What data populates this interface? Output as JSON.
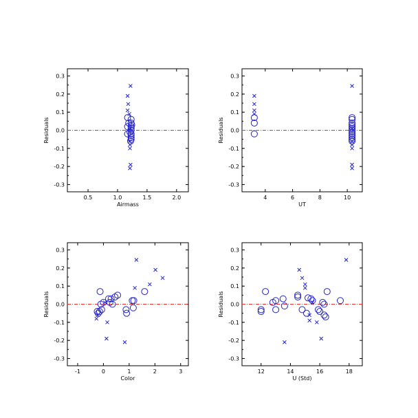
{
  "colors": {
    "points": "#2222cc",
    "zero_line": "#e0342c",
    "axes": "#000000"
  },
  "chart_data": [
    {
      "type": "scatter",
      "xlabel": "Airmass",
      "ylabel": "Residuals",
      "xlim": [
        0.15,
        2.2
      ],
      "ylim": [
        -0.34,
        0.34
      ],
      "xticks": [
        "0.5",
        "1.0",
        "1.5",
        "2.0"
      ],
      "xtick_values": [
        0.5,
        1.0,
        1.5,
        2.0
      ],
      "yticks": [
        "-0.3",
        "-0.2",
        "-0.1",
        "0.0",
        "0.1",
        "0.2",
        "0.3"
      ],
      "ytick_values": [
        -0.3,
        -0.2,
        -0.1,
        0.0,
        0.1,
        0.2,
        0.3
      ],
      "reference_line_y": 0.0,
      "series": [
        {
          "marker": "cross",
          "points": [
            [
              1.22,
              0.245
            ],
            [
              1.17,
              0.19
            ],
            [
              1.18,
              0.145
            ],
            [
              1.17,
              0.11
            ],
            [
              1.2,
              0.09
            ],
            [
              1.22,
              0.01
            ],
            [
              1.21,
              -0.06
            ],
            [
              1.21,
              -0.08
            ],
            [
              1.21,
              -0.1
            ],
            [
              1.22,
              -0.19
            ],
            [
              1.21,
              -0.21
            ]
          ]
        },
        {
          "marker": "circle",
          "points": [
            [
              1.17,
              0.07
            ],
            [
              1.23,
              0.06
            ],
            [
              1.19,
              0.04
            ],
            [
              1.23,
              0.04
            ],
            [
              1.24,
              0.03
            ],
            [
              1.17,
              0.02
            ],
            [
              1.23,
              0.02
            ],
            [
              1.23,
              0.01
            ],
            [
              1.23,
              0.0
            ],
            [
              1.21,
              -0.01
            ],
            [
              1.17,
              -0.02
            ],
            [
              1.23,
              -0.02
            ],
            [
              1.23,
              -0.03
            ],
            [
              1.23,
              -0.04
            ],
            [
              1.23,
              -0.05
            ],
            [
              1.22,
              -0.06
            ]
          ]
        }
      ]
    },
    {
      "type": "scatter",
      "xlabel": "UT",
      "ylabel": "Residuals",
      "xlim": [
        2.3,
        11.1
      ],
      "ylim": [
        -0.34,
        0.34
      ],
      "xticks": [
        "4",
        "6",
        "8",
        "10"
      ],
      "xtick_values": [
        4,
        6,
        8,
        10
      ],
      "yticks": [
        "-0.3",
        "-0.2",
        "-0.1",
        "0.0",
        "0.1",
        "0.2",
        "0.3"
      ],
      "ytick_values": [
        -0.3,
        -0.2,
        -0.1,
        0.0,
        0.1,
        0.2,
        0.3
      ],
      "reference_line_y": 0.0,
      "series": [
        {
          "marker": "cross",
          "points": [
            [
              3.2,
              0.19
            ],
            [
              3.2,
              0.145
            ],
            [
              3.2,
              0.11
            ],
            [
              3.2,
              0.09
            ],
            [
              10.35,
              0.245
            ],
            [
              10.35,
              0.01
            ],
            [
              10.35,
              -0.06
            ],
            [
              10.35,
              -0.08
            ],
            [
              10.35,
              -0.1
            ],
            [
              10.35,
              -0.19
            ],
            [
              10.35,
              -0.21
            ]
          ]
        },
        {
          "marker": "circle",
          "points": [
            [
              3.2,
              0.07
            ],
            [
              3.2,
              0.04
            ],
            [
              3.2,
              -0.02
            ],
            [
              10.35,
              0.07
            ],
            [
              10.35,
              0.06
            ],
            [
              10.35,
              0.04
            ],
            [
              10.35,
              0.03
            ],
            [
              10.35,
              0.02
            ],
            [
              10.35,
              0.01
            ],
            [
              10.35,
              0.0
            ],
            [
              10.35,
              -0.01
            ],
            [
              10.35,
              -0.02
            ],
            [
              10.35,
              -0.03
            ],
            [
              10.35,
              -0.04
            ],
            [
              10.35,
              -0.05
            ],
            [
              10.35,
              -0.06
            ]
          ]
        }
      ]
    },
    {
      "type": "scatter",
      "xlabel": "Color",
      "ylabel": "Residuals",
      "xlim": [
        -1.4,
        3.3
      ],
      "ylim": [
        -0.34,
        0.34
      ],
      "xticks": [
        "-1",
        "0",
        "1",
        "2",
        "3"
      ],
      "xtick_values": [
        -1,
        0,
        1,
        2,
        3
      ],
      "yticks": [
        "-0.3",
        "-0.2",
        "-0.1",
        "0.0",
        "0.1",
        "0.2",
        "0.3"
      ],
      "ytick_values": [
        -0.3,
        -0.2,
        -0.1,
        0.0,
        0.1,
        0.2,
        0.3
      ],
      "reference_line_y": 0.0,
      "series": [
        {
          "marker": "cross",
          "points": [
            [
              1.28,
              0.245
            ],
            [
              2.02,
              0.19
            ],
            [
              2.3,
              0.145
            ],
            [
              1.8,
              0.11
            ],
            [
              1.22,
              0.09
            ],
            [
              0.06,
              0.01
            ],
            [
              -0.22,
              -0.06
            ],
            [
              -0.27,
              -0.08
            ],
            [
              0.15,
              -0.1
            ],
            [
              0.12,
              -0.19
            ],
            [
              0.83,
              -0.21
            ]
          ]
        },
        {
          "marker": "circle",
          "points": [
            [
              -0.13,
              0.07
            ],
            [
              1.6,
              0.07
            ],
            [
              0.55,
              0.05
            ],
            [
              0.45,
              0.04
            ],
            [
              0.2,
              0.03
            ],
            [
              0.3,
              0.03
            ],
            [
              1.12,
              0.02
            ],
            [
              1.18,
              0.02
            ],
            [
              0.0,
              0.01
            ],
            [
              0.25,
              0.01
            ],
            [
              -0.1,
              0.0
            ],
            [
              0.35,
              0.0
            ],
            [
              1.16,
              -0.02
            ],
            [
              0.88,
              -0.03
            ],
            [
              -0.07,
              -0.03
            ],
            [
              -0.15,
              -0.04
            ],
            [
              0.9,
              -0.05
            ],
            [
              -0.24,
              -0.04
            ],
            [
              -0.2,
              -0.05
            ]
          ]
        }
      ]
    },
    {
      "type": "scatter",
      "xlabel": "U (Std)",
      "ylabel": "Residuals",
      "xlim": [
        10.7,
        18.9
      ],
      "ylim": [
        -0.34,
        0.34
      ],
      "xticks": [
        "12",
        "14",
        "16",
        "18"
      ],
      "xtick_values": [
        12,
        14,
        16,
        18
      ],
      "yticks": [
        "-0.3",
        "-0.2",
        "-0.1",
        "0.0",
        "0.1",
        "0.2",
        "0.3"
      ],
      "ytick_values": [
        -0.3,
        -0.2,
        -0.1,
        0.0,
        0.1,
        0.2,
        0.3
      ],
      "reference_line_y": 0.0,
      "series": [
        {
          "marker": "cross",
          "points": [
            [
              17.8,
              0.245
            ],
            [
              14.6,
              0.19
            ],
            [
              14.8,
              0.145
            ],
            [
              15.0,
              0.11
            ],
            [
              15.0,
              0.09
            ],
            [
              15.5,
              0.01
            ],
            [
              15.3,
              -0.06
            ],
            [
              15.3,
              -0.09
            ],
            [
              15.8,
              -0.1
            ],
            [
              16.1,
              -0.19
            ],
            [
              13.6,
              -0.21
            ]
          ]
        },
        {
          "marker": "circle",
          "points": [
            [
              12.3,
              0.07
            ],
            [
              16.5,
              0.07
            ],
            [
              14.5,
              0.05
            ],
            [
              14.5,
              0.04
            ],
            [
              15.2,
              0.035
            ],
            [
              13.0,
              0.02
            ],
            [
              13.5,
              0.03
            ],
            [
              15.5,
              0.02
            ],
            [
              17.4,
              0.02
            ],
            [
              12.8,
              0.01
            ],
            [
              15.4,
              0.03
            ],
            [
              16.2,
              0.01
            ],
            [
              16.3,
              0.0
            ],
            [
              13.6,
              -0.01
            ],
            [
              13.0,
              -0.03
            ],
            [
              15.9,
              -0.03
            ],
            [
              12.0,
              -0.03
            ],
            [
              12.0,
              -0.04
            ],
            [
              14.8,
              -0.03
            ],
            [
              16.0,
              -0.04
            ],
            [
              15.1,
              -0.05
            ],
            [
              16.3,
              -0.06
            ],
            [
              16.4,
              -0.07
            ]
          ]
        }
      ]
    }
  ]
}
